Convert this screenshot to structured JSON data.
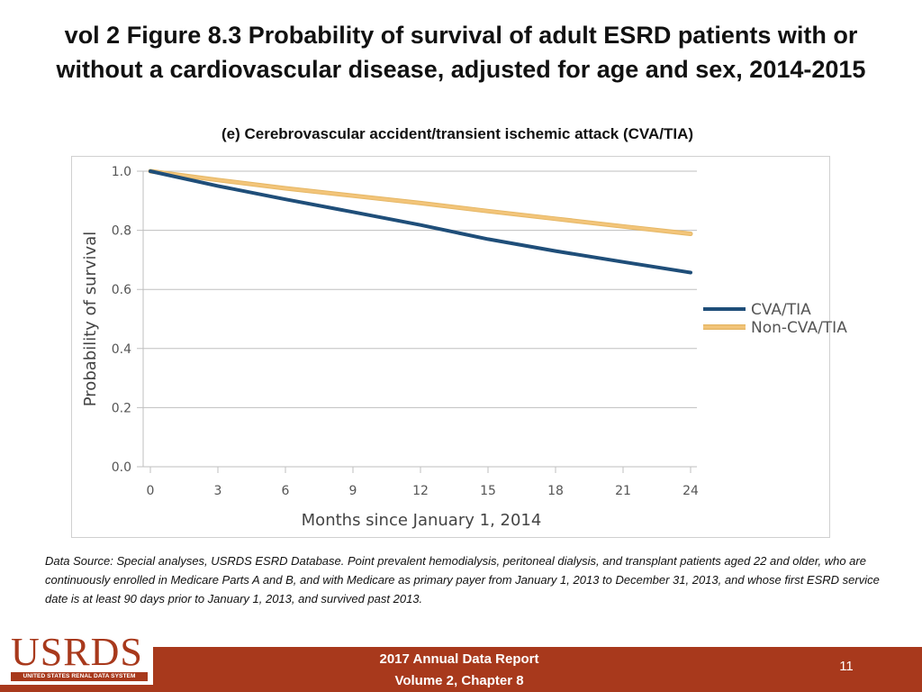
{
  "title_line1": "vol 2 Figure 8.3 Probability of survival of adult ESRD patients with or",
  "title_line2": "without a cardiovascular disease, adjusted for age and sex, 2014-2015",
  "source_text": "Data Source: Special analyses, USRDS ESRD Database. Point prevalent hemodialysis, peritoneal dialysis, and transplant patients aged 22 and older, who are continuously enrolled in Medicare Parts A and B, and with Medicare as primary payer from January 1, 2013 to December 31, 2013, and whose first ESRD service date is at least 90 days prior to January 1, 2013, and survived past 2013.",
  "footer": {
    "line1": "2017 Annual Data Report",
    "line2": "Volume 2, Chapter 8",
    "page_number": "11"
  },
  "logo": {
    "main": "USRDS",
    "sub": "UNITED STATES RENAL DATA SYSTEM"
  },
  "chart_data": {
    "type": "line",
    "title": "(e) Cerebrovascular accident/transient ischemic attack (CVA/TIA)",
    "xlabel": "Months since January 1, 2014",
    "ylabel": "Probability of survival",
    "xlim": [
      0,
      24
    ],
    "ylim": [
      0,
      1.0
    ],
    "xticks": [
      0,
      3,
      6,
      9,
      12,
      15,
      18,
      21,
      24
    ],
    "yticks": [
      0.0,
      0.2,
      0.4,
      0.6,
      0.8,
      1.0
    ],
    "ytick_labels": [
      "0.0",
      "0.2",
      "0.4",
      "0.6",
      "0.8",
      "1.0"
    ],
    "grid": true,
    "legend_position": "right",
    "series": [
      {
        "name": "CVA/TIA",
        "color": "#1f4e79",
        "x": [
          0,
          3,
          6,
          9,
          12,
          15,
          18,
          21,
          24
        ],
        "values": [
          1.0,
          0.95,
          0.905,
          0.862,
          0.818,
          0.77,
          0.73,
          0.693,
          0.657
        ]
      },
      {
        "name": "Non-CVA/TIA",
        "color": "#f3c57a",
        "x": [
          0,
          3,
          6,
          9,
          12,
          15,
          18,
          21,
          24
        ],
        "values": [
          1.0,
          0.97,
          0.942,
          0.917,
          0.892,
          0.865,
          0.839,
          0.813,
          0.788
        ]
      }
    ]
  }
}
